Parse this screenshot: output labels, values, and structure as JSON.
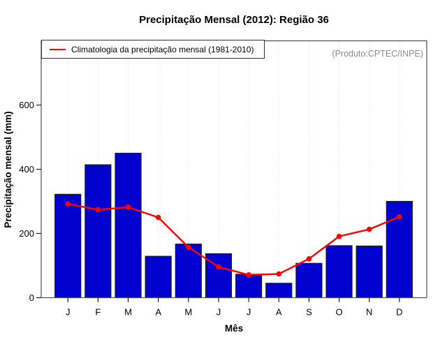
{
  "title": "Precipitação Mensal (2012): Região 36",
  "watermark": "(Produto:CPTEC/INPE)",
  "legend": {
    "label": "Climatologia da precipitação mensal (1981-2010)"
  },
  "chart_data": {
    "type": "bar",
    "categories": [
      "J",
      "F",
      "M",
      "A",
      "M",
      "J",
      "J",
      "A",
      "S",
      "O",
      "N",
      "D"
    ],
    "series": [
      {
        "name": "Precipitação mensal 2012",
        "type": "bar",
        "color": "#0101d0",
        "border_color": "#1a1a1a",
        "values": [
          322,
          414,
          450,
          129,
          167,
          137,
          73,
          45,
          107,
          162,
          161,
          300
        ]
      },
      {
        "name": "Climatologia da precipitação mensal (1981-2010)",
        "type": "line",
        "color": "#ff0000",
        "values": [
          292,
          274,
          282,
          250,
          157,
          96,
          71,
          74,
          121,
          191,
          213,
          252
        ]
      }
    ],
    "title": "Precipitação Mensal (2012): Região 36",
    "xlabel": "Mês",
    "ylabel": "Precipitação mensal (mm)",
    "ylim": [
      0,
      800
    ],
    "yticks": [
      0,
      200,
      400,
      600
    ],
    "grid": "vertical-dotted",
    "grid_color": "#d9d9d9",
    "legend_position": "top-left",
    "annotation": "(Produto:CPTEC/INPE)"
  }
}
